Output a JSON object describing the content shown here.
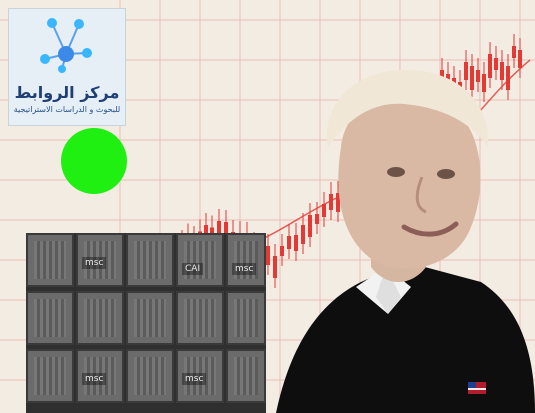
{
  "logo": {
    "name_ar": "مركز الروابط",
    "subtitle_ar": "للبحوث و الدراسات الاستراتيجية",
    "accent": "#1f3f77",
    "secondary": "#3c8ae8"
  },
  "containers": {
    "labels": [
      "msc",
      "msc",
      "CAI",
      "msc",
      "msc"
    ]
  },
  "colors": {
    "candles": "#e53935",
    "grid": "#e9a7a0",
    "background": "#f3ece3",
    "dot": "#1ff012"
  }
}
